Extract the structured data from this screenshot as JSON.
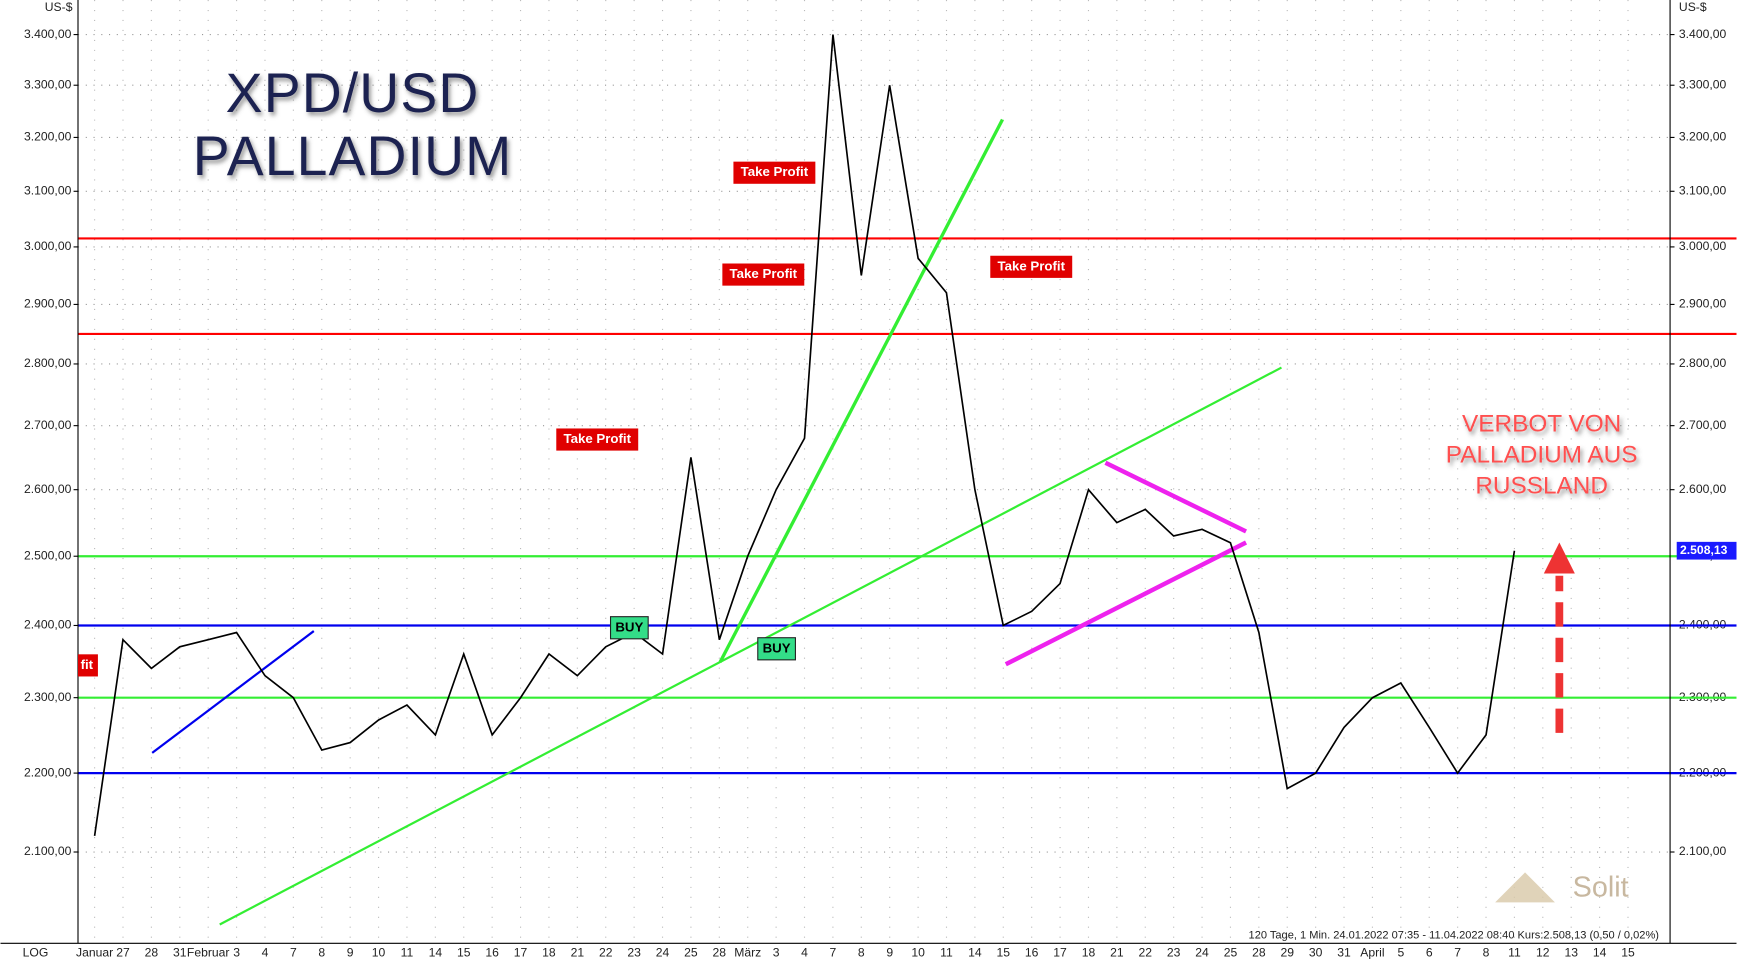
{
  "chart_data": {
    "type": "line",
    "log_scale": true,
    "grid": true,
    "y_unit": "US-$",
    "x_axis_label": "LOG",
    "title_lines": [
      "XPD/USD",
      "PALLADIUM"
    ],
    "categories": [
      "Januar",
      "27",
      "28",
      "31",
      "Februar",
      "3",
      "4",
      "7",
      "8",
      "9",
      "10",
      "11",
      "14",
      "15",
      "16",
      "17",
      "18",
      "21",
      "22",
      "23",
      "24",
      "25",
      "28",
      "März",
      "3",
      "4",
      "7",
      "8",
      "9",
      "10",
      "11",
      "14",
      "15",
      "16",
      "17",
      "18",
      "21",
      "22",
      "23",
      "24",
      "25",
      "28",
      "29",
      "30",
      "31",
      "April",
      "5",
      "6",
      "7",
      "8",
      "11",
      "12",
      "13",
      "14",
      "15"
    ],
    "series": [
      {
        "name": "XPD/USD",
        "color": "#000000",
        "values": [
          2120,
          2380,
          2340,
          2370,
          2380,
          2390,
          2330,
          2300,
          2230,
          2240,
          2270,
          2290,
          2250,
          2360,
          2250,
          2300,
          2360,
          2330,
          2370,
          2390,
          2360,
          2650,
          2380,
          2500,
          2600,
          2680,
          3400,
          2950,
          3300,
          2980,
          2920,
          2600,
          2400,
          2420,
          2460,
          2600,
          2550,
          2570,
          2530,
          2540,
          2520,
          2390,
          2180,
          2200,
          2260,
          2300,
          2320,
          2260,
          2200,
          2250,
          2508.13,
          null,
          null,
          null,
          null
        ]
      }
    ],
    "last_label": "2.508,13",
    "ylim": [
      1990,
      3470
    ],
    "yticks": [
      {
        "value": 2100,
        "label": "2.100,00"
      },
      {
        "value": 2200,
        "label": "2.200,00"
      },
      {
        "value": 2300,
        "label": "2.300,00"
      },
      {
        "value": 2400,
        "label": "2.400,00"
      },
      {
        "value": 2500,
        "label": "2.500,00"
      },
      {
        "value": 2600,
        "label": "2.600,00"
      },
      {
        "value": 2700,
        "label": "2.700,00"
      },
      {
        "value": 2800,
        "label": "2.800,00"
      },
      {
        "value": 2900,
        "label": "2.900,00"
      },
      {
        "value": 3000,
        "label": "3.000,00"
      },
      {
        "value": 3100,
        "label": "3.100,00"
      },
      {
        "value": 3200,
        "label": "3.200,00"
      },
      {
        "value": 3300,
        "label": "3.300,00"
      },
      {
        "value": 3400,
        "label": "3.400,00"
      }
    ],
    "levels": [
      {
        "value": 3015,
        "color": "#ff0000"
      },
      {
        "value": 2850,
        "color": "#ff0000"
      },
      {
        "value": 2500,
        "color": "#33ee33"
      },
      {
        "value": 2300,
        "color": "#33ee33"
      },
      {
        "value": 2400,
        "color": "#0000ee"
      },
      {
        "value": 2200,
        "color": "#0000ee"
      }
    ],
    "annotations": [
      "Take Profit",
      "Take Profit",
      "Take Profit",
      "Take Profit",
      "fit",
      "BUY",
      "BUY"
    ],
    "banner": [
      "VERBOT VON",
      "PALLADIUM AUS",
      "RUSSLAND"
    ],
    "logo": "Solit",
    "footer": "120 Tage, 1 Min. 24.01.2022 07:35 - 11.04.2022 08:40  Kurs:2.508,13 (0,50 / 0,02%)"
  }
}
